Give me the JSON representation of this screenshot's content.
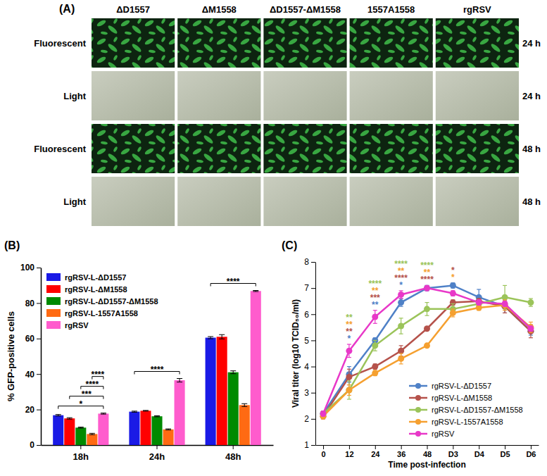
{
  "image_grid": {
    "title": "(A)",
    "columns": [
      "ΔD1557",
      "ΔM1558",
      "ΔD1557-ΔM1558",
      "1557A1558",
      "rgRSV"
    ],
    "rows": [
      {
        "label": "Fluorescent",
        "time": "24 h"
      },
      {
        "label": "Light",
        "time": "24 h"
      },
      {
        "label": "Fluorescent",
        "time": "48 h"
      },
      {
        "label": "Light",
        "time": "48 h"
      }
    ]
  },
  "chart_data": [
    {
      "type": "bar",
      "title": "(B)",
      "y_label": "% GFP-positive cells",
      "categories": [
        "18h",
        "24h",
        "48h"
      ],
      "ylim": [
        0,
        100
      ],
      "yticks": [
        0,
        20,
        40,
        60,
        80,
        100
      ],
      "legend": "upper left",
      "series": [
        {
          "name": "rgRSV-L-ΔD1557",
          "color": "#1a1ae6",
          "values": [
            16.8,
            18.8,
            60.5
          ],
          "errors": [
            0.4,
            0.3,
            0.6
          ]
        },
        {
          "name": "rgRSV-L-ΔM1558",
          "color": "#ff0000",
          "values": [
            15.0,
            19.3,
            61.0
          ],
          "errors": [
            0.4,
            0.2,
            1.2
          ]
        },
        {
          "name": "rgRSV-L-ΔD1557-ΔM1558",
          "color": "#008a00",
          "values": [
            9.8,
            16.2,
            41.0
          ],
          "errors": [
            0.3,
            0.3,
            0.8
          ]
        },
        {
          "name": "rgRSV-L-1557A1558",
          "color": "#ff6a13",
          "values": [
            6.2,
            8.8,
            22.5
          ],
          "errors": [
            0.4,
            0.3,
            0.8
          ]
        },
        {
          "name": "rgRSV",
          "color": "#ff5ccd",
          "values": [
            17.7,
            36.5,
            86.8
          ],
          "errors": [
            0.3,
            1.0,
            0.3
          ]
        }
      ],
      "annotations": [
        {
          "text": "*",
          "category": "18h",
          "from": "rgRSV-L-ΔD1557",
          "to": "rgRSV"
        },
        {
          "text": "***",
          "category": "18h",
          "from": "rgRSV-L-ΔM1558",
          "to": "rgRSV"
        },
        {
          "text": "****",
          "category": "18h",
          "from": "rgRSV-L-ΔD1557-ΔM1558",
          "to": "rgRSV"
        },
        {
          "text": "****",
          "category": "18h",
          "from": "rgRSV-L-1557A1558",
          "to": "rgRSV"
        },
        {
          "text": "****",
          "category": "24h",
          "from": "rgRSV-L-ΔD1557",
          "to": "rgRSV"
        },
        {
          "text": "****",
          "category": "48h",
          "from": "rgRSV-L-ΔD1557",
          "to": "rgRSV"
        }
      ]
    },
    {
      "type": "line",
      "title": "(C)",
      "x_label": "Time post-infection",
      "y_label": "Viral titer (log10 TCID₅₀/ml)",
      "categories": [
        "0",
        "12",
        "24",
        "36",
        "48",
        "D3",
        "D4",
        "D5",
        "D6"
      ],
      "ylim": [
        1,
        8
      ],
      "yticks": [
        1,
        2,
        3,
        4,
        5,
        6,
        7,
        8
      ],
      "legend": "lower right",
      "marker": "circle",
      "series": [
        {
          "name": "rgRSV-L-ΔD1557",
          "color": "#4f81c7",
          "values": [
            2.2,
            3.7,
            5.0,
            6.45,
            7.0,
            7.1,
            6.65,
            6.3,
            5.35
          ],
          "errors": [
            0.1,
            0.3,
            0.1,
            0.15,
            0.1,
            0.1,
            0.3,
            0.25,
            0.15
          ]
        },
        {
          "name": "rgRSV-L-ΔM1558",
          "color": "#b5524b",
          "values": [
            2.1,
            3.6,
            4.0,
            4.6,
            5.45,
            6.45,
            6.5,
            6.3,
            5.35
          ],
          "errors": [
            0.1,
            0.3,
            0.1,
            0.2,
            0.05,
            0.1,
            0.1,
            0.25,
            0.25
          ]
        },
        {
          "name": "rgRSV-L-ΔD1557-ΔM1558",
          "color": "#9bc45a",
          "values": [
            2.2,
            3.1,
            4.8,
            5.55,
            6.2,
            6.2,
            6.4,
            6.65,
            6.45
          ],
          "errors": [
            0.1,
            0.35,
            0.2,
            0.3,
            0.25,
            0.2,
            0.15,
            0.45,
            0.15
          ]
        },
        {
          "name": "rgRSV-L-1557A1558",
          "color": "#f5a030",
          "values": [
            2.1,
            3.1,
            3.75,
            4.3,
            4.8,
            6.05,
            6.25,
            6.35,
            5.5
          ],
          "errors": [
            0.1,
            0.2,
            0.1,
            0.2,
            0.05,
            0.15,
            0.1,
            0.2,
            0.2
          ]
        },
        {
          "name": "rgRSV",
          "color": "#e838c8",
          "values": [
            2.2,
            4.6,
            5.9,
            6.75,
            7.0,
            6.8,
            6.45,
            6.4,
            5.45
          ],
          "errors": [
            0.1,
            0.25,
            0.25,
            0.15,
            0.1,
            0.1,
            0.1,
            0.1,
            0.1
          ]
        }
      ],
      "annotations": [
        {
          "text": "*",
          "x": "12",
          "series": "rgRSV-L-ΔD1557"
        },
        {
          "text": "**",
          "x": "12",
          "series": "rgRSV-L-ΔM1558"
        },
        {
          "text": "**",
          "x": "12",
          "series": "rgRSV-L-1557A1558"
        },
        {
          "text": "**",
          "x": "12",
          "series": "rgRSV-L-ΔD1557-ΔM1558"
        },
        {
          "text": "**",
          "x": "24",
          "series": "rgRSV-L-ΔD1557"
        },
        {
          "text": "***",
          "x": "24",
          "series": "rgRSV-L-ΔM1558"
        },
        {
          "text": "**",
          "x": "24",
          "series": "rgRSV-L-1557A1558"
        },
        {
          "text": "****",
          "x": "24",
          "series": "rgRSV-L-ΔD1557-ΔM1558"
        },
        {
          "text": "*",
          "x": "36",
          "series": "rgRSV-L-ΔD1557"
        },
        {
          "text": "****",
          "x": "36",
          "series": "rgRSV-L-ΔM1558"
        },
        {
          "text": "**",
          "x": "36",
          "series": "rgRSV-L-1557A1558"
        },
        {
          "text": "****",
          "x": "36",
          "series": "rgRSV-L-ΔD1557-ΔM1558"
        },
        {
          "text": "****",
          "x": "48",
          "series": "rgRSV-L-ΔM1558"
        },
        {
          "text": "**",
          "x": "48",
          "series": "rgRSV-L-1557A1558"
        },
        {
          "text": "****",
          "x": "48",
          "series": "rgRSV-L-ΔD1557-ΔM1558"
        },
        {
          "text": "*",
          "x": "D3",
          "series": "rgRSV-L-1557A1558"
        },
        {
          "text": "*",
          "x": "D3",
          "series": "rgRSV-L-ΔM1558"
        }
      ]
    }
  ]
}
